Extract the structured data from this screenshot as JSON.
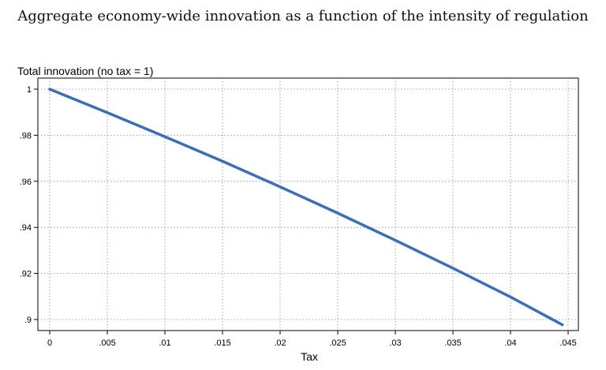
{
  "chart_data": {
    "type": "line",
    "title": "Aggregate economy-wide innovation as a function of the intensity of regulation",
    "ylabel": "Total innovation (no tax = 1)",
    "xlabel": "Tax",
    "xlim": [
      0,
      0.045
    ],
    "ylim": [
      0.9,
      1.0
    ],
    "xticks": [
      {
        "value": 0,
        "label": "0"
      },
      {
        "value": 0.005,
        "label": ".005"
      },
      {
        "value": 0.01,
        "label": ".01"
      },
      {
        "value": 0.015,
        "label": ".015"
      },
      {
        "value": 0.02,
        "label": ".02"
      },
      {
        "value": 0.025,
        "label": ".025"
      },
      {
        "value": 0.03,
        "label": ".03"
      },
      {
        "value": 0.035,
        "label": ".035"
      },
      {
        "value": 0.04,
        "label": ".04"
      },
      {
        "value": 0.045,
        "label": ".045"
      }
    ],
    "yticks": [
      {
        "value": 0.9,
        "label": ".9"
      },
      {
        "value": 0.92,
        "label": ".92"
      },
      {
        "value": 0.94,
        "label": ".94"
      },
      {
        "value": 0.96,
        "label": ".96"
      },
      {
        "value": 0.98,
        "label": ".98"
      },
      {
        "value": 1.0,
        "label": "1"
      }
    ],
    "grid": true,
    "series": [
      {
        "color": "#3a6fb5",
        "x": [
          0,
          0.005,
          0.01,
          0.015,
          0.02,
          0.025,
          0.03,
          0.035,
          0.04,
          0.0445
        ],
        "y": [
          1.0,
          0.9898,
          0.9794,
          0.9687,
          0.9576,
          0.9462,
          0.9344,
          0.9223,
          0.9098,
          0.8977
        ]
      }
    ]
  }
}
